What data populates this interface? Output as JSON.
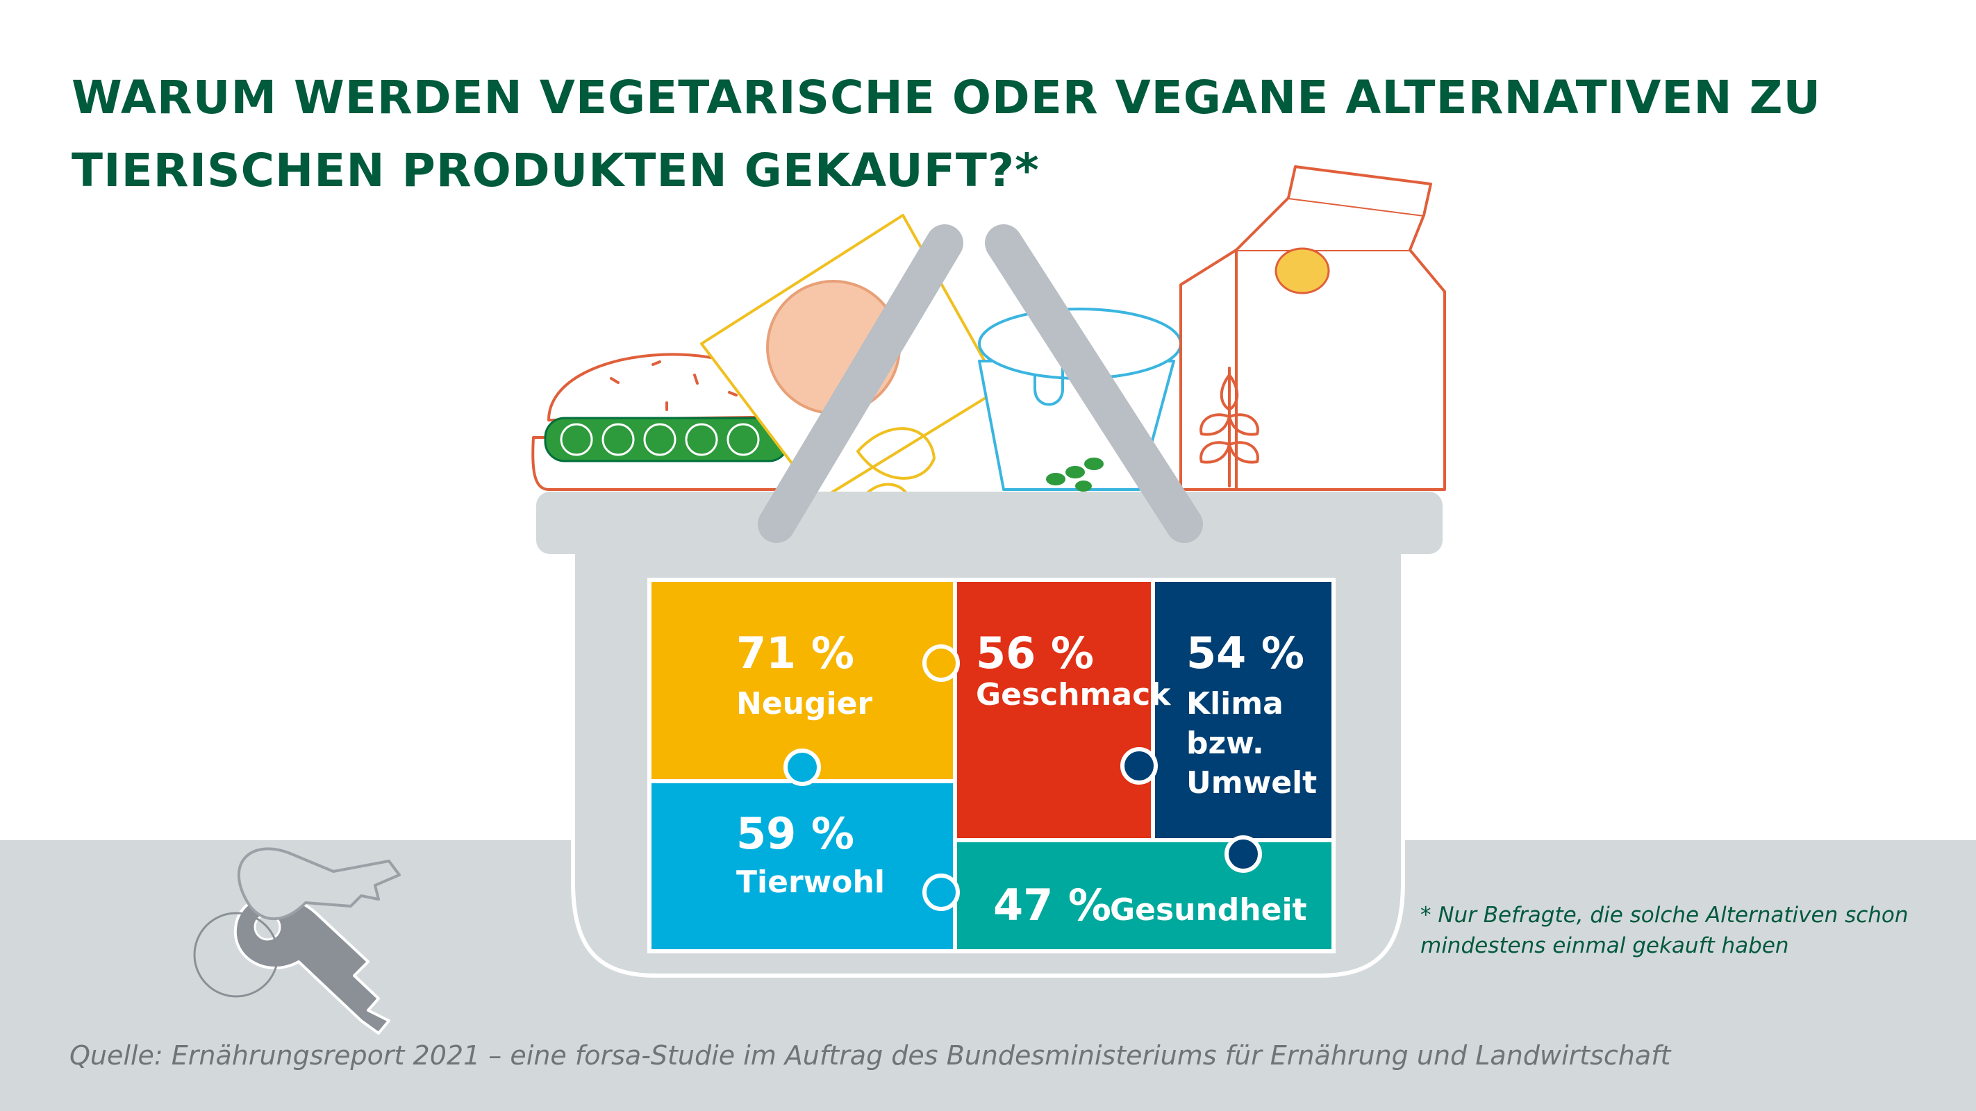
{
  "title": {
    "line1": "WARUM WERDEN VEGETARISCHE ODER VEGANE ALTERNATIVEN ZU",
    "line2": "TIERISCHEN PRODUKTEN GEKAUFT?*"
  },
  "chart_data": {
    "type": "table",
    "title": "WARUM WERDEN VEGETARISCHE ODER VEGANE ALTERNATIVEN ZU TIERISCHEN PRODUKTEN GEKAUFT?*",
    "unit": "%",
    "categories": [
      "Neugier",
      "Tierwohl",
      "Geschmack",
      "Klima bzw. Umwelt",
      "Gesundheit"
    ],
    "values": [
      71,
      59,
      56,
      54,
      47
    ],
    "items": [
      {
        "value": 71,
        "value_label": "71 %",
        "label_lines": [
          "Neugier"
        ],
        "color": "#f7b500"
      },
      {
        "value": 59,
        "value_label": "59 %",
        "label_lines": [
          "Tierwohl"
        ],
        "color": "#00aede"
      },
      {
        "value": 56,
        "value_label": "56 %",
        "label_lines": [
          "Geschmack"
        ],
        "color": "#e03015"
      },
      {
        "value": 54,
        "value_label": "54 %",
        "label_lines": [
          "Klima",
          "bzw.",
          "Umwelt"
        ],
        "color": "#003f73"
      },
      {
        "value": 47,
        "value_label": "47 %",
        "label_lines": [
          "Gesundheit"
        ],
        "color": "#00a99d"
      }
    ]
  },
  "footnote": {
    "line1": "* Nur Befragte, die solche Alternativen schon",
    "line2": "mindestens einmal gekauft haben"
  },
  "source": "Quelle: Ernährungsreport 2021 – eine forsa-Studie im Auftrag des Bundesministeriums für Ernährung und Landwirtschaft",
  "colors": {
    "title": "#005a3c",
    "basket": "#d3d8db",
    "ground": "#d3d8db",
    "source": "#6f7478"
  },
  "icons": [
    "keys-icon",
    "basket-icon",
    "burger-icon",
    "sandwich-pack-icon",
    "yogurt-cup-icon",
    "milk-carton-icon",
    "wheat-icon"
  ]
}
